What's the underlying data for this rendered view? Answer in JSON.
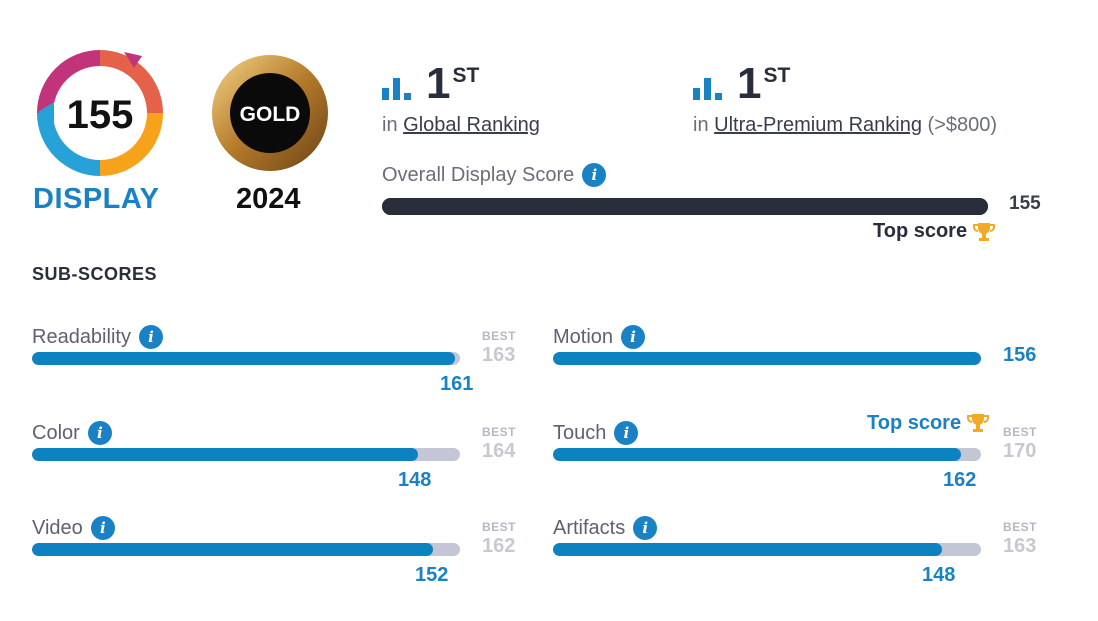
{
  "badges": {
    "display_score": "155",
    "display_label": "DISPLAY",
    "gold_label": "GOLD",
    "year": "2024"
  },
  "rankings": [
    {
      "rank": "1",
      "suffix": "ST",
      "prefix": "in",
      "link": "Global Ranking",
      "extra": ""
    },
    {
      "rank": "1",
      "suffix": "ST",
      "prefix": "in",
      "link": "Ultra-Premium Ranking",
      "extra": "(>$800)"
    }
  ],
  "overall": {
    "label": "Overall Display Score",
    "value": "155",
    "fraction": 1.0,
    "top_score_label": "Top score"
  },
  "subscores_title": "SUB-SCORES",
  "subscores": [
    {
      "name": "Readability",
      "best_label": "BEST",
      "best": "163",
      "value": "161",
      "fraction": 0.988
    },
    {
      "name": "Motion",
      "best_label": "",
      "best": "",
      "value": "156",
      "fraction": 1.0,
      "top_score_label": "Top score"
    },
    {
      "name": "Color",
      "best_label": "BEST",
      "best": "164",
      "value": "148",
      "fraction": 0.902
    },
    {
      "name": "Touch",
      "best_label": "BEST",
      "best": "170",
      "value": "162",
      "fraction": 0.953
    },
    {
      "name": "Video",
      "best_label": "BEST",
      "best": "162",
      "value": "152",
      "fraction": 0.938
    },
    {
      "name": "Artifacts",
      "best_label": "BEST",
      "best": "163",
      "value": "148",
      "fraction": 0.908
    }
  ],
  "icons": {
    "info": "info-icon",
    "trophy": "trophy-icon",
    "ranking": "bar-chart-icon"
  },
  "colors": {
    "accent": "#1a82c4",
    "dark": "#2a2e3b",
    "track": "#c3c6d4",
    "gold": "#f2a926"
  }
}
